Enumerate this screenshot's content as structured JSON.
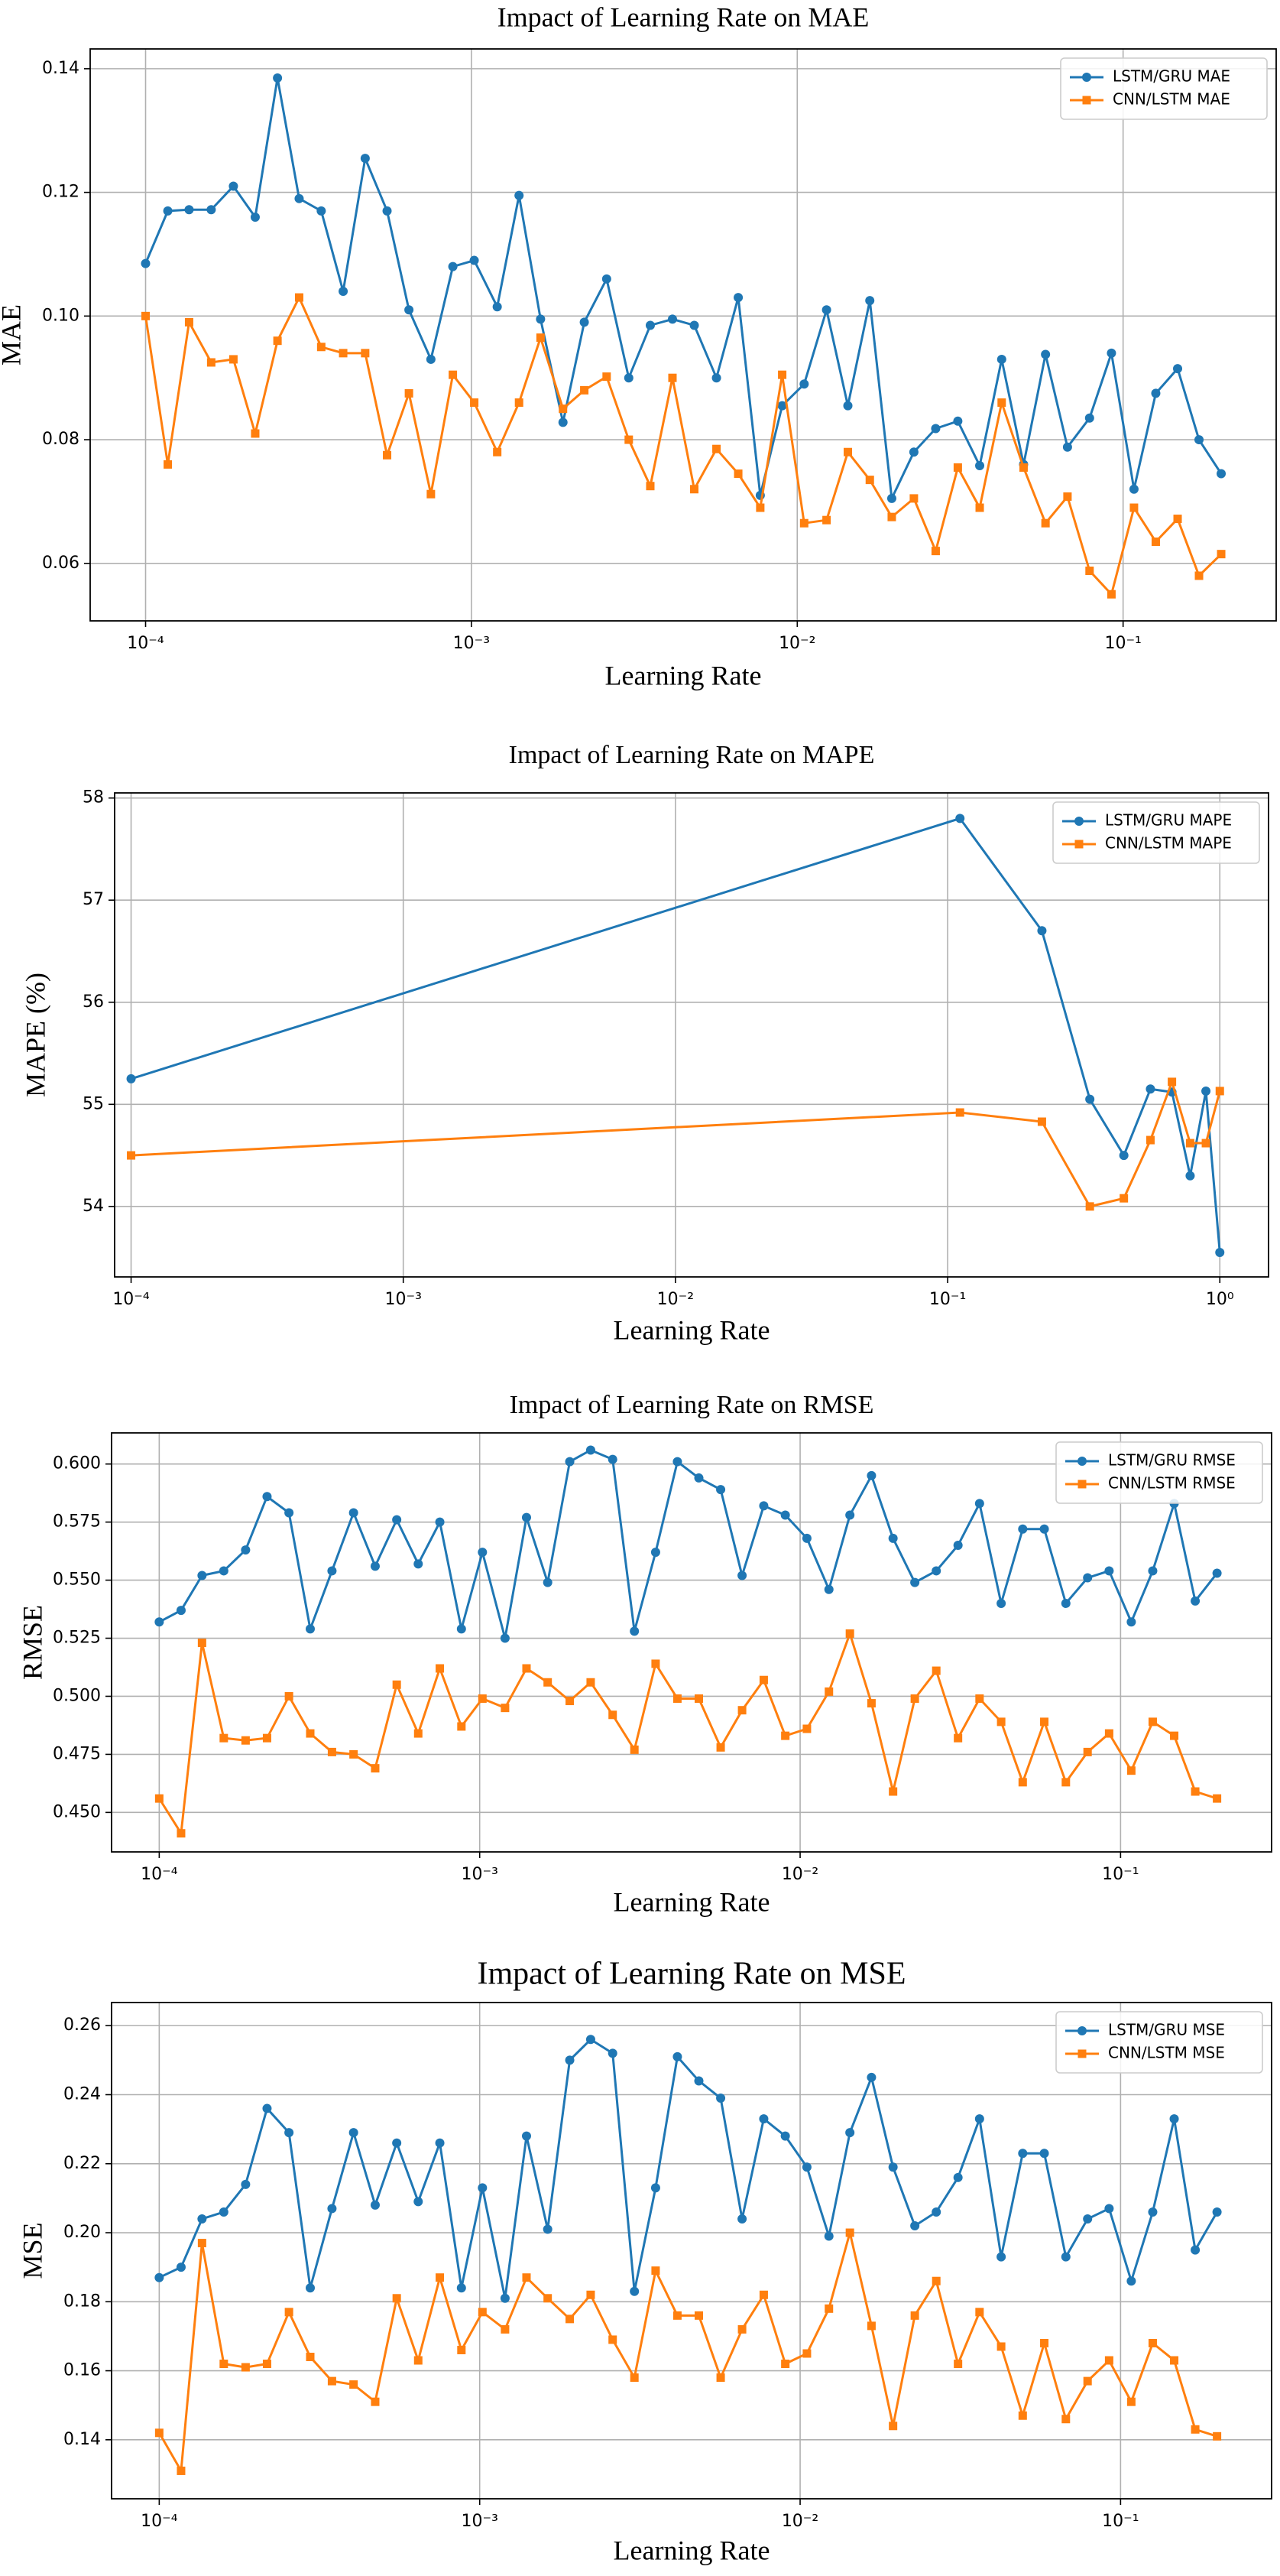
{
  "chart_data": [
    {
      "type": "line",
      "title": "Impact of Learning Rate on MAE",
      "xlabel": "Learning Rate",
      "ylabel": "MAE",
      "xscale": "log",
      "grid": true,
      "legend": "upper right",
      "xlim": [
        6.76e-05,
        0.295
      ],
      "ylim": [
        0.0507,
        0.1432
      ],
      "xticks": [
        {
          "value": 0.0001,
          "label": "10⁻⁴"
        },
        {
          "value": 0.001,
          "label": "10⁻³"
        },
        {
          "value": 0.01,
          "label": "10⁻²"
        },
        {
          "value": 0.1,
          "label": "10⁻¹"
        }
      ],
      "yticks": [
        0.06,
        0.08,
        {
          "value": 0.1,
          "label": "0.10"
        },
        0.12,
        0.14
      ],
      "x": [
        0.0001,
        0.000117,
        0.000136,
        0.000159,
        0.000186,
        0.000217,
        0.000254,
        0.000296,
        0.000346,
        0.000404,
        0.000472,
        0.000551,
        0.000643,
        0.000751,
        0.000877,
        0.00102,
        0.0012,
        0.0014,
        0.00163,
        0.00191,
        0.00222,
        0.0026,
        0.00304,
        0.00354,
        0.00414,
        0.00483,
        0.00565,
        0.00659,
        0.0077,
        0.00899,
        0.0105,
        0.0123,
        0.0143,
        0.0167,
        0.0195,
        0.0228,
        0.0266,
        0.0311,
        0.0363,
        0.0424,
        0.0495,
        0.0578,
        0.0675,
        0.0789,
        0.0921,
        0.108,
        0.126,
        0.147,
        0.171,
        0.2
      ],
      "series": [
        {
          "name": "LSTM/GRU MAE",
          "color": "#1f77b4",
          "marker": "circle",
          "values": [
            0.1085,
            0.117,
            0.1172,
            0.1172,
            0.121,
            0.116,
            0.1385,
            0.119,
            0.117,
            0.104,
            0.1255,
            0.117,
            0.101,
            0.093,
            0.108,
            0.109,
            0.1015,
            0.1195,
            0.0995,
            0.0828,
            0.099,
            0.106,
            0.09,
            0.0985,
            0.0995,
            0.0985,
            0.09,
            0.103,
            0.071,
            0.0855,
            0.089,
            0.101,
            0.0855,
            0.1025,
            0.0705,
            0.078,
            0.0818,
            0.083,
            0.0758,
            0.093,
            0.076,
            0.0938,
            0.0788,
            0.0835,
            0.094,
            0.072,
            0.0875,
            0.0915,
            0.08,
            0.0745
          ]
        },
        {
          "name": "CNN/LSTM MAE",
          "color": "#ff7f0e",
          "marker": "square",
          "values": [
            0.1,
            0.076,
            0.099,
            0.0925,
            0.093,
            0.081,
            0.096,
            0.103,
            0.095,
            0.094,
            0.094,
            0.0775,
            0.0875,
            0.0712,
            0.0905,
            0.086,
            0.078,
            0.086,
            0.0965,
            0.085,
            0.088,
            0.0902,
            0.08,
            0.0725,
            0.09,
            0.072,
            0.0785,
            0.0745,
            0.069,
            0.0905,
            0.0665,
            0.067,
            0.078,
            0.0735,
            0.0675,
            0.0705,
            0.062,
            0.0755,
            0.069,
            0.086,
            0.0755,
            0.0665,
            0.0708,
            0.0588,
            0.055,
            0.069,
            0.0635,
            0.0672,
            0.058,
            0.0615
          ]
        }
      ]
    },
    {
      "type": "line",
      "title": "Impact of Learning Rate on MAPE",
      "xlabel": "Learning Rate",
      "ylabel": "MAPE (%)",
      "xscale": "log",
      "grid": true,
      "legend": "upper right",
      "xlim": [
        8.7e-05,
        1.51
      ],
      "ylim": [
        53.31,
        58.05
      ],
      "xticks": [
        {
          "value": 0.0001,
          "label": "10⁻⁴"
        },
        {
          "value": 0.001,
          "label": "10⁻³"
        },
        {
          "value": 0.01,
          "label": "10⁻²"
        },
        {
          "value": 0.1,
          "label": "10⁻¹"
        },
        {
          "value": 1,
          "label": "10⁰"
        }
      ],
      "yticks": [
        54,
        55,
        56,
        57,
        58
      ],
      "x": [
        0.0001,
        0.111,
        0.222,
        0.333,
        0.444,
        0.556,
        0.667,
        0.778,
        0.889,
        1
      ],
      "series": [
        {
          "name": "LSTM/GRU MAPE",
          "color": "#1f77b4",
          "marker": "circle",
          "values": [
            55.25,
            57.8,
            56.7,
            55.05,
            54.5,
            55.15,
            55.12,
            54.3,
            55.13,
            53.55
          ]
        },
        {
          "name": "CNN/LSTM MAPE",
          "color": "#ff7f0e",
          "marker": "square",
          "values": [
            54.5,
            54.92,
            54.83,
            54.0,
            54.08,
            54.65,
            55.22,
            54.62,
            54.62,
            55.13
          ]
        }
      ]
    },
    {
      "type": "line",
      "title": "Impact of Learning Rate on RMSE",
      "xlabel": "Learning Rate",
      "ylabel": "RMSE",
      "xscale": "log",
      "grid": true,
      "legend": "upper right",
      "xlim": [
        7.1e-05,
        0.296
      ],
      "ylim": [
        0.433,
        0.6134
      ],
      "xticks": [
        {
          "value": 0.0001,
          "label": "10⁻⁴"
        },
        {
          "value": 0.001,
          "label": "10⁻³"
        },
        {
          "value": 0.01,
          "label": "10⁻²"
        },
        {
          "value": 0.1,
          "label": "10⁻¹"
        }
      ],
      "yticks": [
        {
          "value": 0.45,
          "label": "0.450"
        },
        {
          "value": 0.475,
          "label": "0.475"
        },
        {
          "value": 0.5,
          "label": "0.500"
        },
        {
          "value": 0.525,
          "label": "0.525"
        },
        {
          "value": 0.55,
          "label": "0.550"
        },
        {
          "value": 0.575,
          "label": "0.575"
        },
        {
          "value": 0.6,
          "label": "0.600"
        }
      ],
      "x": [
        0.0001,
        0.000117,
        0.000136,
        0.000159,
        0.000186,
        0.000217,
        0.000254,
        0.000296,
        0.000346,
        0.000404,
        0.000472,
        0.000551,
        0.000643,
        0.000751,
        0.000877,
        0.00102,
        0.0012,
        0.0014,
        0.00163,
        0.00191,
        0.00222,
        0.0026,
        0.00304,
        0.00354,
        0.00414,
        0.00483,
        0.00565,
        0.00659,
        0.0077,
        0.00899,
        0.0105,
        0.0123,
        0.0143,
        0.0167,
        0.0195,
        0.0228,
        0.0266,
        0.0311,
        0.0363,
        0.0424,
        0.0495,
        0.0578,
        0.0675,
        0.0789,
        0.0921,
        0.108,
        0.126,
        0.147,
        0.171,
        0.2
      ],
      "series": [
        {
          "name": "LSTM/GRU RMSE",
          "color": "#1f77b4",
          "marker": "circle",
          "values": [
            0.532,
            0.537,
            0.552,
            0.554,
            0.563,
            0.586,
            0.579,
            0.529,
            0.554,
            0.579,
            0.556,
            0.576,
            0.557,
            0.575,
            0.529,
            0.562,
            0.525,
            0.577,
            0.549,
            0.601,
            0.606,
            0.602,
            0.528,
            0.562,
            0.601,
            0.594,
            0.589,
            0.552,
            0.582,
            0.578,
            0.568,
            0.546,
            0.578,
            0.595,
            0.568,
            0.549,
            0.554,
            0.565,
            0.583,
            0.54,
            0.572,
            0.572,
            0.54,
            0.551,
            0.554,
            0.532,
            0.554,
            0.583,
            0.541,
            0.553
          ]
        },
        {
          "name": "CNN/LSTM RMSE",
          "color": "#ff7f0e",
          "marker": "square",
          "values": [
            0.456,
            0.441,
            0.523,
            0.482,
            0.481,
            0.482,
            0.5,
            0.484,
            0.476,
            0.475,
            0.469,
            0.505,
            0.484,
            0.512,
            0.487,
            0.499,
            0.495,
            0.512,
            0.506,
            0.498,
            0.506,
            0.492,
            0.477,
            0.514,
            0.499,
            0.499,
            0.478,
            0.494,
            0.507,
            0.483,
            0.486,
            0.502,
            0.527,
            0.497,
            0.459,
            0.499,
            0.511,
            0.482,
            0.499,
            0.489,
            0.463,
            0.489,
            0.463,
            0.476,
            0.484,
            0.468,
            0.489,
            0.483,
            0.459,
            0.456
          ]
        }
      ]
    },
    {
      "type": "line",
      "title": "Impact of Learning Rate on MSE",
      "xlabel": "Learning Rate",
      "ylabel": "MSE",
      "xscale": "log",
      "grid": true,
      "legend": "upper right",
      "xlim": [
        7.1e-05,
        0.296
      ],
      "ylim": [
        0.1229,
        0.2667
      ],
      "xticks": [
        {
          "value": 0.0001,
          "label": "10⁻⁴"
        },
        {
          "value": 0.001,
          "label": "10⁻³"
        },
        {
          "value": 0.01,
          "label": "10⁻²"
        },
        {
          "value": 0.1,
          "label": "10⁻¹"
        }
      ],
      "yticks": [
        0.14,
        0.16,
        0.18,
        {
          "value": 0.2,
          "label": "0.20"
        },
        0.22,
        0.24,
        0.26
      ],
      "x": [
        0.0001,
        0.000117,
        0.000136,
        0.000159,
        0.000186,
        0.000217,
        0.000254,
        0.000296,
        0.000346,
        0.000404,
        0.000472,
        0.000551,
        0.000643,
        0.000751,
        0.000877,
        0.00102,
        0.0012,
        0.0014,
        0.00163,
        0.00191,
        0.00222,
        0.0026,
        0.00304,
        0.00354,
        0.00414,
        0.00483,
        0.00565,
        0.00659,
        0.0077,
        0.00899,
        0.0105,
        0.0123,
        0.0143,
        0.0167,
        0.0195,
        0.0228,
        0.0266,
        0.0311,
        0.0363,
        0.0424,
        0.0495,
        0.0578,
        0.0675,
        0.0789,
        0.0921,
        0.108,
        0.126,
        0.147,
        0.171,
        0.2
      ],
      "series": [
        {
          "name": "LSTM/GRU MSE",
          "color": "#1f77b4",
          "marker": "circle",
          "values": [
            0.187,
            0.19,
            0.204,
            0.206,
            0.214,
            0.236,
            0.229,
            0.184,
            0.207,
            0.229,
            0.208,
            0.226,
            0.209,
            0.226,
            0.184,
            0.213,
            0.181,
            0.228,
            0.201,
            0.25,
            0.256,
            0.252,
            0.183,
            0.213,
            0.251,
            0.244,
            0.239,
            0.204,
            0.233,
            0.228,
            0.219,
            0.199,
            0.229,
            0.245,
            0.219,
            0.202,
            0.206,
            0.216,
            0.233,
            0.193,
            0.223,
            0.223,
            0.193,
            0.204,
            0.207,
            0.186,
            0.206,
            0.233,
            0.195,
            0.206
          ]
        },
        {
          "name": "CNN/LSTM MSE",
          "color": "#ff7f0e",
          "marker": "square",
          "values": [
            0.142,
            0.131,
            0.197,
            0.162,
            0.161,
            0.162,
            0.177,
            0.164,
            0.157,
            0.156,
            0.151,
            0.181,
            0.163,
            0.187,
            0.166,
            0.177,
            0.172,
            0.187,
            0.181,
            0.175,
            0.182,
            0.169,
            0.158,
            0.189,
            0.176,
            0.176,
            0.158,
            0.172,
            0.182,
            0.162,
            0.165,
            0.178,
            0.2,
            0.173,
            0.144,
            0.176,
            0.186,
            0.162,
            0.177,
            0.167,
            0.147,
            0.168,
            0.146,
            0.157,
            0.163,
            0.151,
            0.168,
            0.163,
            0.143,
            0.141
          ]
        }
      ]
    }
  ]
}
